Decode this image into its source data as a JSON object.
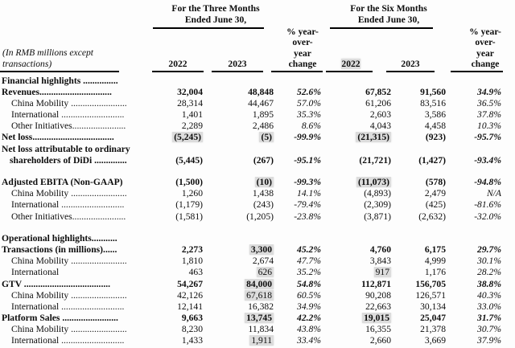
{
  "meta": {
    "note_lines": [
      "(In RMB millions except",
      "transactions)"
    ]
  },
  "header": {
    "three_months_lines": [
      "For the Three Months",
      "Ended June 30,"
    ],
    "six_months_lines": [
      "For the Six Months",
      "Ended June 30,"
    ],
    "yoy_lines": [
      "% year-",
      "over-",
      "year",
      "change"
    ],
    "years": [
      "2022",
      "2023"
    ]
  },
  "table": {
    "rows": [
      {
        "style": "section",
        "label": "Financial highlights ...............",
        "cells": [
          "",
          "",
          "",
          "",
          "",
          ""
        ]
      },
      {
        "style": "total",
        "label": "Revenues...............................",
        "cells": [
          "32,004",
          "48,848",
          "52.6%",
          "67,852",
          "91,560",
          "34.9%"
        ]
      },
      {
        "style": "sub",
        "label": "China Mobility ........................",
        "cells": [
          "28,314",
          "44,467",
          "57.0%",
          "61,206",
          "83,516",
          "36.5%"
        ]
      },
      {
        "style": "sub",
        "label": "International ...........................",
        "cells": [
          "1,401",
          "1,895",
          "35.3%",
          "2,603",
          "3,586",
          "37.8%"
        ]
      },
      {
        "style": "sub",
        "label": "Other Initiatives.......................",
        "cells": [
          "2,289",
          "2,486",
          "8.6%",
          "4,043",
          "4,458",
          "10.3%"
        ]
      },
      {
        "style": "total",
        "label": "Net loss...................................",
        "cells": [
          "(5,245)",
          "(5)",
          "-99.9%",
          "(21,315)",
          "(923)",
          "-95.7%"
        ],
        "hl": [
          0,
          1,
          3
        ]
      },
      {
        "style": "total twoline",
        "label": "Net loss attributable to ordinary",
        "label2": "shareholders of DiDi ..............",
        "cells": [
          "(5,445)",
          "(267)",
          "-95.1%",
          "(21,721)",
          "(1,427)",
          "-93.4%"
        ]
      },
      {
        "style": "spacer"
      },
      {
        "style": "total",
        "label": "Adjusted EBITA (Non-GAAP)",
        "cells": [
          "(1,500)",
          "(10)",
          "-99.3%",
          "(11,073)",
          "(578)",
          "-94.8%"
        ],
        "hl": [
          1,
          3
        ]
      },
      {
        "style": "sub",
        "label": "China Mobility ........................",
        "cells": [
          "1,260",
          "1,438",
          "14.1%",
          "(4,893)",
          "2,479",
          "N/A"
        ]
      },
      {
        "style": "sub",
        "label": "International ...........................",
        "cells": [
          "(1,179)",
          "(243)",
          "-79.4%",
          "(2,309)",
          "(425)",
          "-81.6%"
        ]
      },
      {
        "style": "sub",
        "label": "Other Initiatives.......................",
        "cells": [
          "(1,581)",
          "(1,205)",
          "-23.8%",
          "(3,871)",
          "(2,632)",
          "-32.0%"
        ]
      },
      {
        "style": "spacer"
      },
      {
        "style": "section",
        "label": "Operational highlights...........",
        "cells": [
          "",
          "",
          "",
          "",
          "",
          ""
        ]
      },
      {
        "style": "total",
        "label": "Transactions (in millions)......",
        "cells": [
          "2,273",
          "3,300",
          "45.2%",
          "4,760",
          "6,175",
          "29.7%"
        ],
        "hl": [
          1
        ]
      },
      {
        "style": "sub",
        "label": "China Mobility ........................",
        "cells": [
          "1,810",
          "2,674",
          "47.7%",
          "3,843",
          "4,999",
          "30.1%"
        ]
      },
      {
        "style": "sub",
        "label": "International",
        "cells": [
          "463",
          "626",
          "35.2%",
          "917",
          "1,176",
          "28.2%"
        ],
        "hl": [
          1,
          3
        ]
      },
      {
        "style": "total",
        "label": "GTV .....................................",
        "cells": [
          "54,267",
          "84,000",
          "54.8%",
          "112,871",
          "156,705",
          "38.8%"
        ],
        "hl": [
          1
        ]
      },
      {
        "style": "sub",
        "label": "China Mobility ........................",
        "cells": [
          "42,126",
          "67,618",
          "60.5%",
          "90,208",
          "126,571",
          "40.3%"
        ],
        "hl": [
          1
        ]
      },
      {
        "style": "sub",
        "label": "International ...........................",
        "cells": [
          "12,141",
          "16,382",
          "34.9%",
          "22,663",
          "30,134",
          "33.0%"
        ]
      },
      {
        "style": "total",
        "label": "Platform Sales ........................",
        "cells": [
          "9,663",
          "13,745",
          "42.2%",
          "19,015",
          "25,047",
          "31.7%"
        ],
        "hl": [
          1,
          3
        ]
      },
      {
        "style": "sub",
        "label": "China Mobility ........................",
        "cells": [
          "8,230",
          "11,834",
          "43.8%",
          "16,355",
          "21,378",
          "30.7%"
        ]
      },
      {
        "style": "sub",
        "label": "International ...........................",
        "cells": [
          "1,433",
          "1,911",
          "33.4%",
          "2,660",
          "3,669",
          "37.9%"
        ],
        "hl": [
          1
        ]
      }
    ]
  }
}
